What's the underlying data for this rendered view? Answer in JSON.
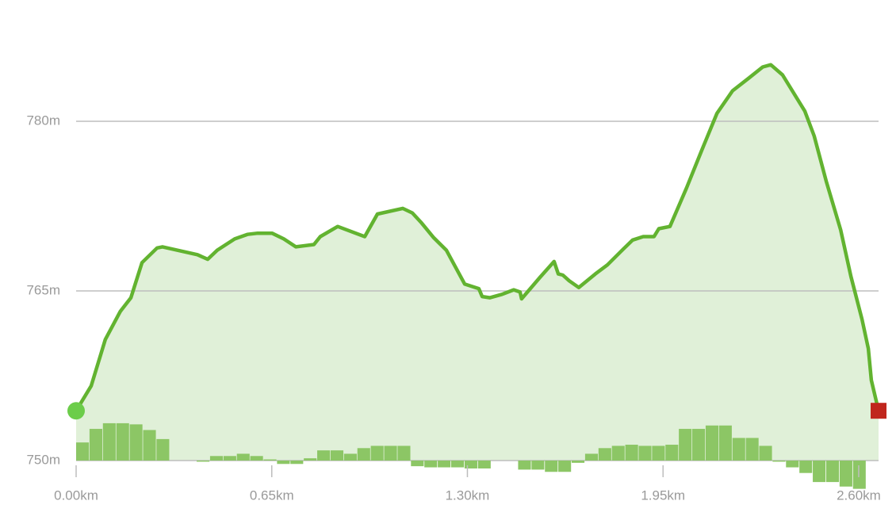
{
  "chart_data": {
    "type": "area",
    "x": [
      0,
      0.05,
      0.097,
      0.147,
      0.182,
      0.219,
      0.269,
      0.287,
      0.403,
      0.437,
      0.469,
      0.527,
      0.569,
      0.603,
      0.651,
      0.69,
      0.73,
      0.79,
      0.811,
      0.869,
      0.959,
      1.001,
      1.085,
      1.117,
      1.148,
      1.188,
      1.23,
      1.291,
      1.338,
      1.349,
      1.375,
      1.415,
      1.454,
      1.475,
      1.48,
      1.541,
      1.588,
      1.602,
      1.617,
      1.638,
      1.67,
      1.725,
      1.765,
      1.818,
      1.849,
      1.884,
      1.92,
      1.936,
      1.973,
      2.028,
      2.078,
      2.129,
      2.181,
      2.234,
      2.281,
      2.308,
      2.347,
      2.421,
      2.452,
      2.492,
      2.54,
      2.574,
      2.611,
      2.632,
      2.642,
      2.666
    ],
    "series": [
      {
        "color": "#62b330",
        "values": [
          754.4,
          756.6,
          760.7,
          763.2,
          764.4,
          767.5,
          768.8,
          768.9,
          768.2,
          767.8,
          768.6,
          769.6,
          770.0,
          770.1,
          770.1,
          769.6,
          768.9,
          769.1,
          769.8,
          770.7,
          769.8,
          771.8,
          772.3,
          771.9,
          771.0,
          769.7,
          768.6,
          765.6,
          765.2,
          764.5,
          764.4,
          764.7,
          765.1,
          764.9,
          764.3,
          766.2,
          767.6,
          766.5,
          766.4,
          765.9,
          765.3,
          766.5,
          767.3,
          768.7,
          769.5,
          769.8,
          769.8,
          770.5,
          770.7,
          774.1,
          777.4,
          780.7,
          782.7,
          783.8,
          784.8,
          785.0,
          784.1,
          780.9,
          778.7,
          774.7,
          770.4,
          766.3,
          762.5,
          759.9,
          757.1,
          754.4
        ]
      },
      {
        "type": "histogram",
        "axis": "y2",
        "color": "#8cc665",
        "bins": [
          0,
          0.0445,
          0.089,
          0.1335,
          0.178,
          0.2225,
          0.267,
          0.3115,
          0.356,
          0.4005,
          0.445,
          0.4895,
          0.534,
          0.5785,
          0.623,
          0.6675,
          0.712,
          0.7565,
          0.801,
          0.8455,
          0.89,
          0.9345,
          0.979,
          1.0235,
          1.068,
          1.1125,
          1.157,
          1.2015,
          1.246,
          1.2905,
          1.335,
          1.3795,
          1.424,
          1.4685,
          1.513,
          1.5575,
          1.602,
          1.6465,
          1.691,
          1.7355,
          1.78,
          1.8245,
          1.869,
          1.9135,
          1.958,
          2.0025,
          2.047,
          2.0915,
          2.136,
          2.1805,
          2.225,
          2.2695,
          2.314,
          2.3585,
          2.403,
          2.4475,
          2.492,
          2.5365,
          2.581,
          2.6255
        ],
        "values": [
          1.6,
          2.8,
          3.3,
          3.3,
          3.2,
          2.7,
          1.9,
          0,
          0,
          -0.1,
          0.4,
          0.4,
          0.6,
          0.4,
          0.1,
          -0.3,
          -0.3,
          0.2,
          0.9,
          0.9,
          0.6,
          1.1,
          1.3,
          1.3,
          1.3,
          -0.5,
          -0.6,
          -0.6,
          -0.6,
          -0.7,
          -0.7,
          0,
          0,
          -0.8,
          -0.8,
          -1.0,
          -1.0,
          -0.2,
          0.6,
          1.1,
          1.3,
          1.4,
          1.3,
          1.3,
          1.4,
          2.8,
          2.8,
          3.1,
          3.1,
          2.0,
          2.0,
          1.3,
          -0.1,
          -0.6,
          -1.1,
          -1.9,
          -1.9,
          -2.3,
          -2.5
        ]
      }
    ],
    "area_color": "#e0f0d8",
    "start_color": "#6ccd4a",
    "end_color": "#c0261d",
    "xlim": [
      0,
      2.666
    ],
    "ylim": [
      747,
      786
    ],
    "y2lim": [
      -3,
      36
    ],
    "xticks": [
      {
        "value": 0,
        "label": "0.00km"
      },
      {
        "value": 0.65,
        "label": "0.65km"
      },
      {
        "value": 1.3,
        "label": "1.30km"
      },
      {
        "value": 1.95,
        "label": "1.95km"
      },
      {
        "value": 2.6,
        "label": "2.60km"
      }
    ],
    "yticks": [
      {
        "value": 750,
        "label": "750m"
      },
      {
        "value": 765,
        "label": "765m"
      },
      {
        "value": 780,
        "label": "780m"
      }
    ],
    "grid": true
  }
}
